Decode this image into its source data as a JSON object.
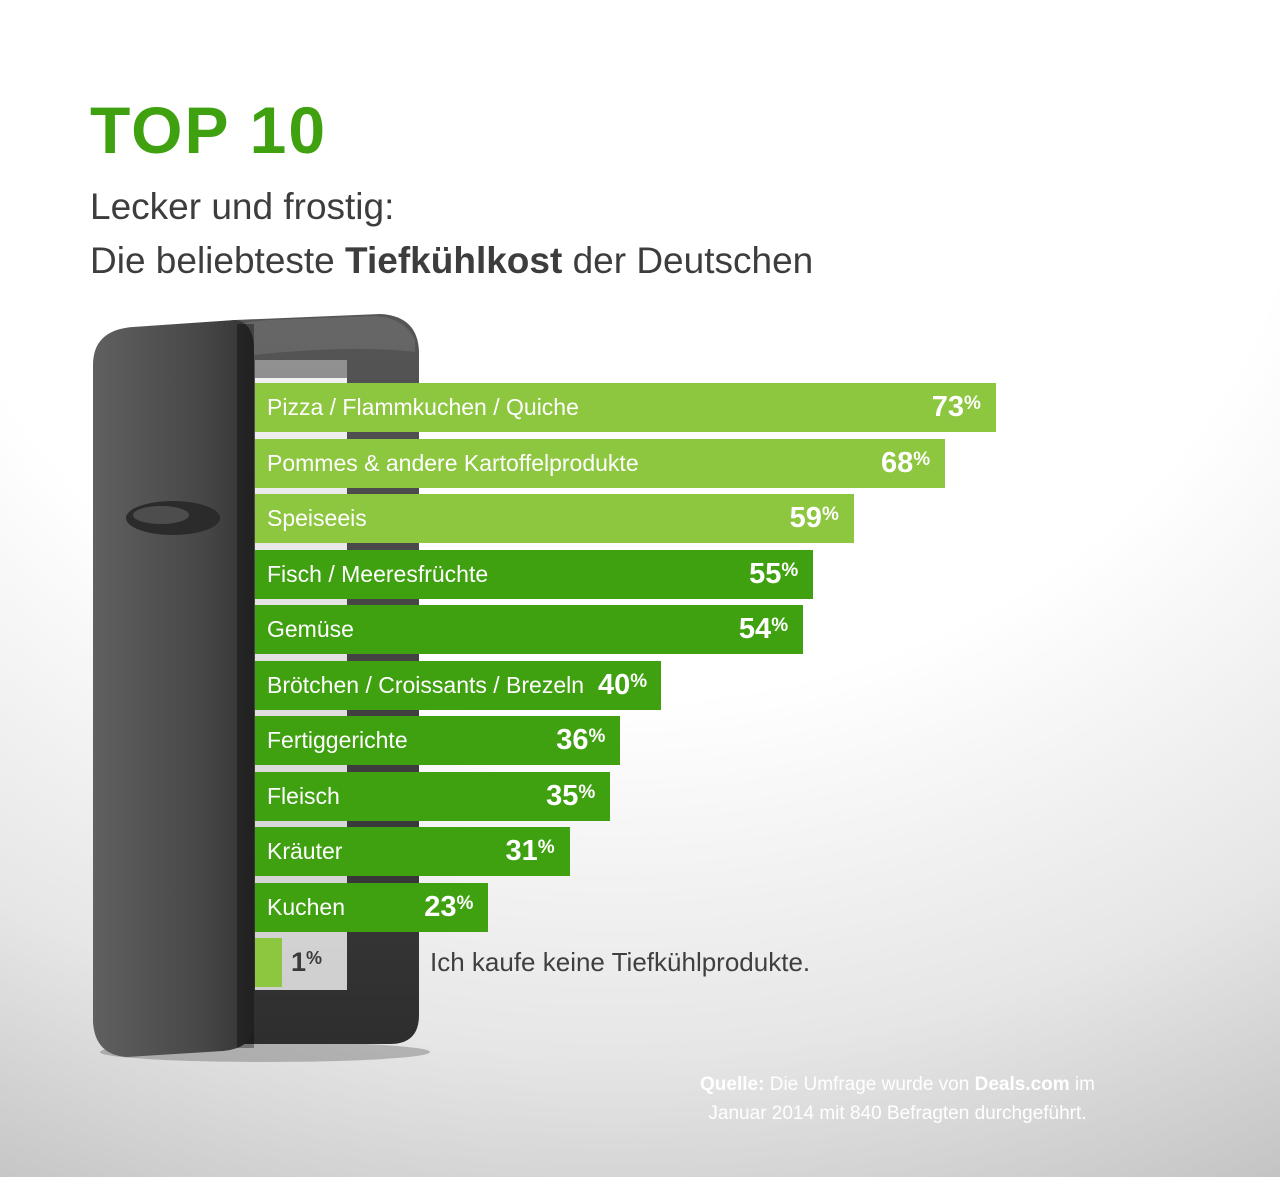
{
  "page": {
    "title": "TOP 10",
    "subtitle_line1": "Lecker und frostig:",
    "subtitle_line2": {
      "prefix": "Die beliebteste ",
      "bold": "Tiefkühlkost",
      "suffix": " der Deutschen"
    }
  },
  "chart_data": {
    "type": "bar",
    "orientation": "horizontal",
    "unit": "%",
    "categories": [
      "Pizza / Flammkuchen / Quiche",
      "Pommes & andere Kartoffelprodukte",
      "Speiseeis",
      "Fisch / Meeresfrüchte",
      "Gemüse",
      "Brötchen / Croissants / Brezeln",
      "Fertiggerichte",
      "Fleisch",
      "Kräuter",
      "Kuchen",
      "Ich kaufe keine Tiefkühlprodukte."
    ],
    "values": [
      73,
      68,
      59,
      55,
      54,
      40,
      36,
      35,
      31,
      23,
      1
    ],
    "bar_palette": [
      "light",
      "light",
      "light",
      "dark",
      "dark",
      "dark",
      "dark",
      "dark",
      "dark",
      "dark",
      "light"
    ],
    "colors": {
      "light": "#8dc63f",
      "dark": "#3fa110"
    },
    "xlim": [
      0,
      100
    ],
    "value_labels_inside": true,
    "last_value_label_outside": true
  },
  "colors": {
    "title_green": "#3fa110",
    "accent_light_green": "#8dc63f",
    "accent_dark_green": "#3fa110",
    "text_dark": "#3d3d3d",
    "footer_text": "#ffffff"
  },
  "illustration": {
    "name": "open-freezer"
  },
  "footer": {
    "quelle_bold": "Quelle:",
    "line1_text": " Die Umfrage wurde von ",
    "brand_bold": "Deals.com",
    "line1_suffix": " im",
    "line2": "Januar 2014 mit 840 Befragten durchgeführt."
  }
}
